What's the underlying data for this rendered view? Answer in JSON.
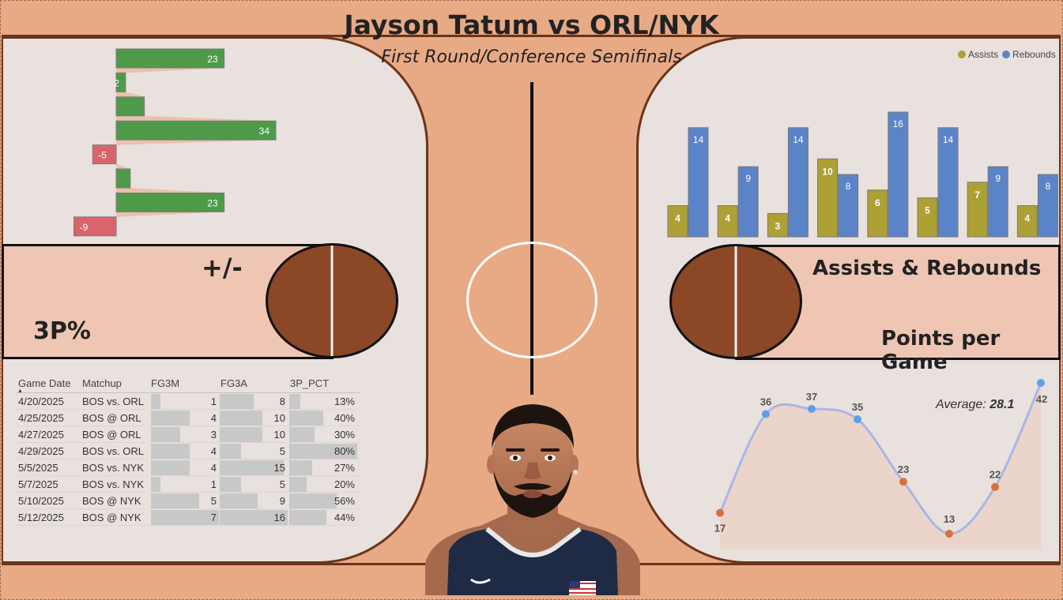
{
  "header": {
    "title": "Jayson Tatum vs ORL/NYK",
    "subtitle": "First Round/Conference Semifinals"
  },
  "labels": {
    "plus_minus": "+/-",
    "three_pct": "3P%",
    "assists_rebounds": "Assists & Rebounds",
    "points_per_game": "Points per Game"
  },
  "colors": {
    "positive": "#4E9A48",
    "negative": "#D9646C",
    "assists": "#ADA035",
    "rebounds": "#5B84C8",
    "line": "#A9B6E6",
    "point_high": "#5DA0E8",
    "point_low": "#D8713E"
  },
  "chart_data": [
    {
      "type": "bar",
      "orientation": "horizontal",
      "name": "plus-minus",
      "values": [
        23,
        2,
        6,
        34,
        -5,
        3,
        23,
        -9
      ],
      "data_labels": [
        "23",
        "2",
        "",
        "34",
        "-5",
        "",
        "23",
        "-9"
      ]
    },
    {
      "type": "bar",
      "name": "assists-rebounds",
      "legend_position": "top-right",
      "series": [
        {
          "name": "Assists",
          "values": [
            4,
            4,
            3,
            10,
            6,
            5,
            7,
            4
          ]
        },
        {
          "name": "Rebounds",
          "values": [
            14,
            9,
            14,
            8,
            16,
            14,
            9,
            8
          ]
        }
      ]
    },
    {
      "type": "line",
      "name": "points-per-game",
      "values": [
        17,
        36,
        37,
        35,
        23,
        13,
        22,
        42
      ],
      "average_label": "Average:",
      "average_value": "28.1",
      "average": 28.1
    },
    {
      "type": "table",
      "name": "three-point-table",
      "columns": [
        "Game Date",
        "Matchup",
        "FG3M",
        "FG3A",
        "3P_PCT"
      ],
      "rows": [
        {
          "date": "4/20/2025",
          "matchup": "BOS vs. ORL",
          "fg3m": 1,
          "fg3a": 8,
          "pct": "13%",
          "pct_value": 13
        },
        {
          "date": "4/25/2025",
          "matchup": "BOS @ ORL",
          "fg3m": 4,
          "fg3a": 10,
          "pct": "40%",
          "pct_value": 40
        },
        {
          "date": "4/27/2025",
          "matchup": "BOS @ ORL",
          "fg3m": 3,
          "fg3a": 10,
          "pct": "30%",
          "pct_value": 30
        },
        {
          "date": "4/29/2025",
          "matchup": "BOS vs. ORL",
          "fg3m": 4,
          "fg3a": 5,
          "pct": "80%",
          "pct_value": 80
        },
        {
          "date": "5/5/2025",
          "matchup": "BOS vs. NYK",
          "fg3m": 4,
          "fg3a": 15,
          "pct": "27%",
          "pct_value": 27
        },
        {
          "date": "5/7/2025",
          "matchup": "BOS vs. NYK",
          "fg3m": 1,
          "fg3a": 5,
          "pct": "20%",
          "pct_value": 20
        },
        {
          "date": "5/10/2025",
          "matchup": "BOS @ NYK",
          "fg3m": 5,
          "fg3a": 9,
          "pct": "56%",
          "pct_value": 56
        },
        {
          "date": "5/12/2025",
          "matchup": "BOS @ NYK",
          "fg3m": 7,
          "fg3a": 16,
          "pct": "44%",
          "pct_value": 44
        }
      ]
    }
  ]
}
